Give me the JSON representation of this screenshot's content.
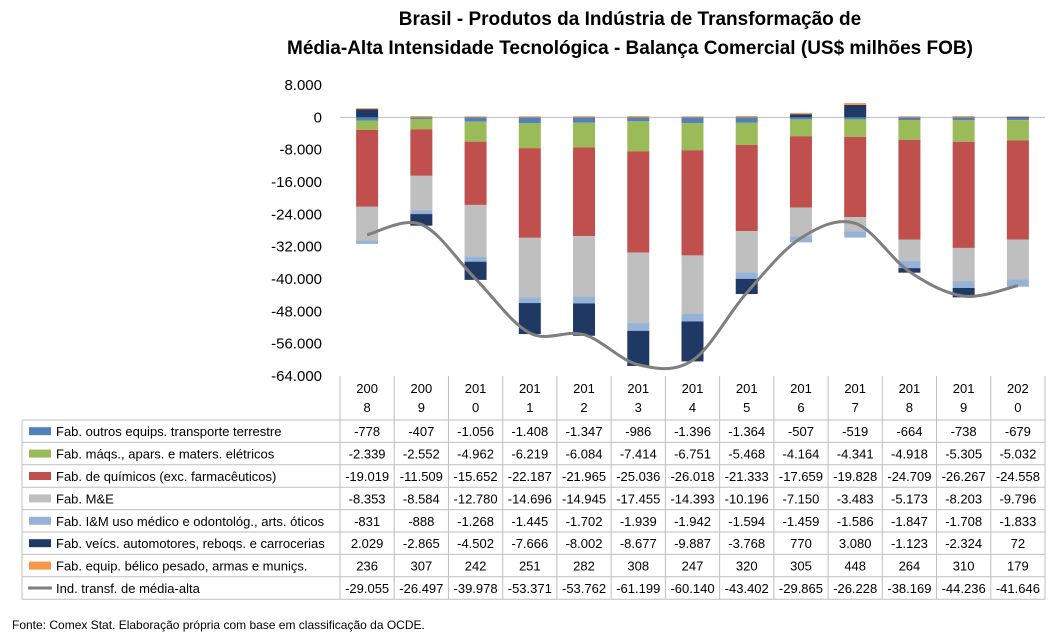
{
  "chart_data": {
    "type": "bar",
    "title_line1": "Brasil - Produtos da Indústria de Transformação de",
    "title_line2": "Média-Alta Intensidade Tecnológica - Balança Comercial (US$ milhões FOB)",
    "footnote": "Fonte:  Comex Stat. Elaboração própria com base em classificação da OCDE.",
    "ylim": [
      -64000,
      8000
    ],
    "yticks": [
      "8.000",
      "0",
      "-8.000",
      "-16.000",
      "-24.000",
      "-32.000",
      "-40.000",
      "-48.000",
      "-56.000",
      "-64.000"
    ],
    "categories": [
      [
        "200",
        "8"
      ],
      [
        "200",
        "9"
      ],
      [
        "201",
        "0"
      ],
      [
        "201",
        "1"
      ],
      [
        "201",
        "2"
      ],
      [
        "201",
        "3"
      ],
      [
        "201",
        "4"
      ],
      [
        "201",
        "5"
      ],
      [
        "201",
        "6"
      ],
      [
        "201",
        "7"
      ],
      [
        "201",
        "8"
      ],
      [
        "201",
        "9"
      ],
      [
        "202",
        "0"
      ]
    ],
    "years": [
      2008,
      2009,
      2010,
      2011,
      2012,
      2013,
      2014,
      2015,
      2016,
      2017,
      2018,
      2019,
      2020
    ],
    "series": [
      {
        "name": "Fab. outros equips. transporte terrestre",
        "color": "#4f81bd",
        "values": [
          -778,
          -407,
          -1056,
          -1408,
          -1347,
          -986,
          -1396,
          -1364,
          -507,
          -519,
          -664,
          -738,
          -679
        ],
        "labels": [
          "-778",
          "-407",
          "-1.056",
          "-1.408",
          "-1.347",
          "-986",
          "-1.396",
          "-1.364",
          "-507",
          "-519",
          "-664",
          "-738",
          "-679"
        ]
      },
      {
        "name": "Fab. máqs., apars. e maters. elétricos",
        "color": "#9bbb59",
        "values": [
          -2339,
          -2552,
          -4962,
          -6219,
          -6084,
          -7414,
          -6751,
          -5468,
          -4164,
          -4341,
          -4918,
          -5305,
          -5032
        ],
        "labels": [
          "-2.339",
          "-2.552",
          "-4.962",
          "-6.219",
          "-6.084",
          "-7.414",
          "-6.751",
          "-5.468",
          "-4.164",
          "-4.341",
          "-4.918",
          "-5.305",
          "-5.032"
        ]
      },
      {
        "name": "Fab. de químicos (exc. farmacêuticos)",
        "color": "#c0504d",
        "values": [
          -19019,
          -11509,
          -15652,
          -22187,
          -21965,
          -25036,
          -26018,
          -21333,
          -17659,
          -19828,
          -24709,
          -26267,
          -24558
        ],
        "labels": [
          "-19.019",
          "-11.509",
          "-15.652",
          "-22.187",
          "-21.965",
          "-25.036",
          "-26.018",
          "-21.333",
          "-17.659",
          "-19.828",
          "-24.709",
          "-26.267",
          "-24.558"
        ]
      },
      {
        "name": "Fab. M&E",
        "color": "#bfbfbf",
        "values": [
          -8353,
          -8584,
          -12780,
          -14696,
          -14945,
          -17455,
          -14393,
          -10196,
          -7150,
          -3483,
          -5173,
          -8203,
          -9796
        ],
        "labels": [
          "-8.353",
          "-8.584",
          "-12.780",
          "-14.696",
          "-14.945",
          "-17.455",
          "-14.393",
          "-10.196",
          "-7.150",
          "-3.483",
          "-5.173",
          "-8.203",
          "-9.796"
        ]
      },
      {
        "name": "Fab. I&M uso médico e odontológ., arts. óticos",
        "color": "#95b3d7",
        "values": [
          -831,
          -888,
          -1268,
          -1445,
          -1702,
          -1939,
          -1942,
          -1594,
          -1459,
          -1586,
          -1847,
          -1708,
          -1833
        ],
        "labels": [
          "-831",
          "-888",
          "-1.268",
          "-1.445",
          "-1.702",
          "-1.939",
          "-1.942",
          "-1.594",
          "-1.459",
          "-1.586",
          "-1.847",
          "-1.708",
          "-1.833"
        ]
      },
      {
        "name": "Fab. veícs. automotores, reboqs. e carrocerias",
        "color": "#1f3864",
        "values": [
          2029,
          -2865,
          -4502,
          -7666,
          -8002,
          -8677,
          -9887,
          -3768,
          770,
          3080,
          -1123,
          -2324,
          72
        ],
        "labels": [
          "2.029",
          "-2.865",
          "-4.502",
          "-7.666",
          "-8.002",
          "-8.677",
          "-9.887",
          "-3.768",
          "770",
          "3.080",
          "-1.123",
          "-2.324",
          "72"
        ]
      },
      {
        "name": "Fab. equip. bélico pesado, armas e muniçs.",
        "color": "#f79646",
        "values": [
          236,
          307,
          242,
          251,
          282,
          308,
          247,
          320,
          305,
          448,
          264,
          310,
          179
        ],
        "labels": [
          "236",
          "307",
          "242",
          "251",
          "282",
          "308",
          "247",
          "320",
          "305",
          "448",
          "264",
          "310",
          "179"
        ]
      },
      {
        "name": "Ind. transf. de média-alta",
        "color": "#7f7f7f",
        "type": "line",
        "values": [
          -29055,
          -26497,
          -39978,
          -53371,
          -53762,
          -61199,
          -60140,
          -43402,
          -29865,
          -26228,
          -38169,
          -44236,
          -41646
        ],
        "labels": [
          "-29.055",
          "-26.497",
          "-39.978",
          "-53.371",
          "-53.762",
          "-61.199",
          "-60.140",
          "-43.402",
          "-29.865",
          "-26.228",
          "-38.169",
          "-44.236",
          "-41.646"
        ]
      }
    ]
  }
}
